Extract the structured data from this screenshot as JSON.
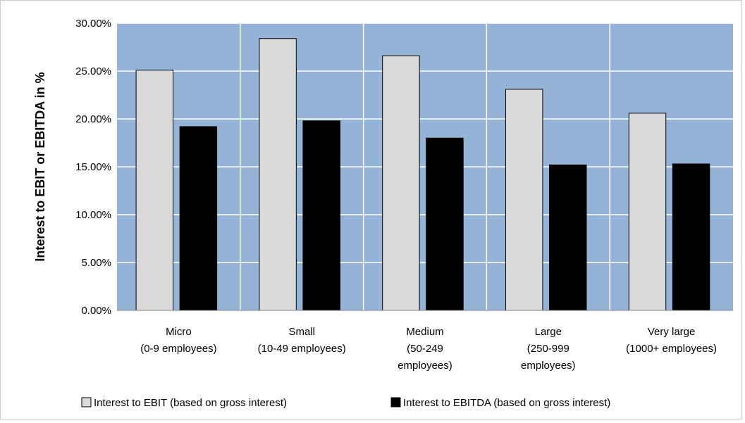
{
  "chart_data": {
    "type": "bar",
    "title": "",
    "xlabel": "",
    "ylabel": "Interest to EBIT or EBITDA in %",
    "ylim": [
      0,
      0.3
    ],
    "yticks": [
      "0.00%",
      "5.00%",
      "10.00%",
      "15.00%",
      "20.00%",
      "25.00%",
      "30.00%"
    ],
    "categories": [
      [
        "Micro",
        "(0-9 employees)"
      ],
      [
        "Small",
        "(10-49 employees)"
      ],
      [
        "Medium",
        "(50-249",
        "employees)"
      ],
      [
        "Large",
        "(250-999",
        "employees)"
      ],
      [
        "Very large",
        "(1000+ employees)"
      ]
    ],
    "series": [
      {
        "name": "Interest to EBIT (based on gross interest)",
        "color": "#d9d9d9",
        "values": [
          0.251,
          0.284,
          0.266,
          0.231,
          0.206
        ]
      },
      {
        "name": "Interest to EBITDA (based on gross interest)",
        "color": "#000000",
        "values": [
          0.192,
          0.198,
          0.18,
          0.152,
          0.153
        ]
      }
    ],
    "plot_background": "#95b3d7",
    "grid": true,
    "legend_position": "bottom"
  }
}
